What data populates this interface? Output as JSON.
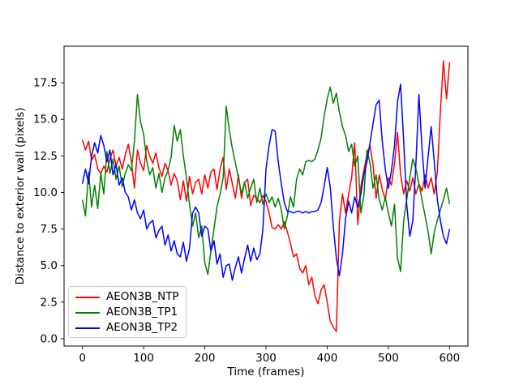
{
  "chart_data": {
    "type": "line",
    "title": "",
    "xlabel": "Time (frames)",
    "ylabel": "Distance to exterior wall (pixels)",
    "xlim": [
      -30,
      630
    ],
    "ylim": [
      -0.5,
      20.0
    ],
    "grid": false,
    "legend_position": "lower left",
    "x_ticks": [
      0,
      100,
      200,
      300,
      400,
      500,
      600
    ],
    "x_tick_labels": [
      "0",
      "100",
      "200",
      "300",
      "400",
      "500",
      "600"
    ],
    "y_ticks": [
      0.0,
      2.5,
      5.0,
      7.5,
      10.0,
      12.5,
      15.0,
      17.5
    ],
    "y_tick_labels": [
      "0.0",
      "2.5",
      "5.0",
      "7.5",
      "10.0",
      "12.5",
      "15.0",
      "17.5"
    ],
    "axis_color": "#000000",
    "x": [
      0,
      5,
      10,
      15,
      20,
      25,
      30,
      35,
      40,
      45,
      50,
      55,
      60,
      65,
      70,
      75,
      80,
      85,
      90,
      95,
      100,
      105,
      110,
      115,
      120,
      125,
      130,
      135,
      140,
      145,
      150,
      155,
      160,
      165,
      170,
      175,
      180,
      185,
      190,
      195,
      200,
      205,
      210,
      215,
      220,
      225,
      230,
      235,
      240,
      245,
      250,
      255,
      260,
      265,
      270,
      275,
      280,
      285,
      290,
      295,
      300,
      305,
      310,
      315,
      320,
      325,
      330,
      335,
      340,
      345,
      350,
      355,
      360,
      365,
      370,
      375,
      380,
      385,
      390,
      395,
      400,
      405,
      410,
      415,
      420,
      425,
      430,
      435,
      440,
      445,
      450,
      455,
      460,
      465,
      470,
      475,
      480,
      485,
      490,
      495,
      500,
      505,
      510,
      515,
      520,
      525,
      530,
      535,
      540,
      545,
      550,
      555,
      560,
      565,
      570,
      575,
      580,
      585,
      590,
      595,
      600
    ],
    "series": [
      {
        "name": "AEON3B_NTP",
        "color": "#ff0000",
        "values": [
          13.6,
          12.9,
          13.5,
          12.2,
          12.6,
          11.6,
          11.3,
          11.8,
          11.4,
          12.3,
          12.9,
          11.8,
          12.4,
          11.6,
          12.6,
          13.3,
          12.1,
          10.3,
          12.9,
          12.0,
          11.5,
          13.2,
          12.5,
          12.0,
          12.7,
          11.7,
          11.1,
          12.0,
          11.5,
          10.5,
          11.3,
          10.8,
          9.5,
          10.8,
          9.4,
          11.1,
          9.9,
          10.7,
          10.9,
          9.9,
          11.2,
          10.3,
          11.4,
          11.6,
          10.2,
          11.6,
          12.4,
          10.2,
          11.6,
          10.6,
          9.6,
          11.2,
          9.6,
          10.7,
          10.9,
          9.1,
          9.8,
          9.6,
          9.3,
          9.8,
          9.4,
          8.6,
          7.6,
          7.5,
          7.8,
          7.5,
          8.0,
          7.3,
          6.5,
          5.6,
          5.8,
          4.8,
          4.5,
          5.0,
          3.7,
          4.2,
          2.9,
          2.4,
          3.3,
          3.7,
          2.5,
          1.2,
          0.8,
          0.5,
          8.0,
          9.9,
          8.6,
          9.9,
          11.0,
          13.4,
          7.8,
          10.4,
          11.5,
          12.6,
          13.2,
          11.9,
          9.6,
          11.2,
          10.2,
          9.5,
          11.0,
          10.5,
          12.0,
          14.1,
          11.2,
          9.9,
          10.8,
          10.1,
          11.0,
          9.9,
          10.6,
          10.1,
          11.2,
          10.3,
          11.0,
          9.9,
          11.4,
          15.5,
          19.0,
          16.4,
          18.9
        ]
      },
      {
        "name": "AEON3B_TP1",
        "color": "#008000",
        "values": [
          9.5,
          8.4,
          11.4,
          9.0,
          10.5,
          8.9,
          11.3,
          9.9,
          12.8,
          11.3,
          12.3,
          10.9,
          11.8,
          10.4,
          11.3,
          11.9,
          11.5,
          13.5,
          16.7,
          14.8,
          14.0,
          12.2,
          11.2,
          11.7,
          10.3,
          11.3,
          10.0,
          11.0,
          11.5,
          12.4,
          14.6,
          13.5,
          14.3,
          12.5,
          11.0,
          9.2,
          7.7,
          8.6,
          6.9,
          7.7,
          5.2,
          4.4,
          6.0,
          7.5,
          9.0,
          9.9,
          11.0,
          15.9,
          14.3,
          13.0,
          12.0,
          11.0,
          9.9,
          10.7,
          9.6,
          10.3,
          10.9,
          9.3,
          10.3,
          9.2,
          9.9,
          9.3,
          9.7,
          9.0,
          9.6,
          8.8,
          7.5,
          8.4,
          9.7,
          9.0,
          10.9,
          11.6,
          11.2,
          12.1,
          12.2,
          12.1,
          12.3,
          12.9,
          13.7,
          15.2,
          16.4,
          17.2,
          16.1,
          16.8,
          15.5,
          14.5,
          13.9,
          12.8,
          13.3,
          11.8,
          12.5,
          8.6,
          9.8,
          12.9,
          12.0,
          10.3,
          11.2,
          9.5,
          8.8,
          9.7,
          8.6,
          7.7,
          9.2,
          5.5,
          4.6,
          8.1,
          9.5,
          11.0,
          12.3,
          11.6,
          10.6,
          9.5,
          8.4,
          7.3,
          5.8,
          7.3,
          8.1,
          8.8,
          9.5,
          10.3,
          9.2
        ]
      },
      {
        "name": "AEON3B_TP2",
        "color": "#0000ff",
        "values": [
          10.6,
          11.6,
          10.6,
          12.5,
          13.4,
          12.7,
          13.9,
          13.2,
          12.1,
          12.9,
          11.2,
          11.9,
          10.5,
          11.0,
          10.0,
          9.7,
          8.8,
          9.5,
          8.6,
          8.2,
          8.8,
          7.5,
          7.9,
          8.1,
          6.9,
          7.4,
          7.7,
          6.4,
          7.1,
          6.0,
          6.7,
          5.8,
          5.6,
          6.6,
          5.3,
          6.2,
          8.6,
          9.0,
          8.6,
          7.0,
          7.7,
          7.5,
          6.0,
          6.7,
          5.1,
          5.8,
          4.2,
          5.0,
          5.1,
          4.0,
          4.9,
          5.6,
          4.5,
          5.5,
          6.4,
          5.3,
          6.2,
          5.4,
          5.8,
          7.5,
          11.6,
          13.2,
          14.3,
          14.2,
          12.1,
          10.6,
          9.3,
          8.7,
          8.7,
          8.6,
          8.7,
          8.7,
          8.6,
          8.7,
          8.6,
          8.7,
          8.7,
          8.8,
          9.3,
          10.4,
          11.7,
          10.4,
          7.7,
          5.5,
          4.3,
          5.8,
          8.2,
          9.4,
          8.6,
          9.7,
          9.0,
          9.9,
          11.2,
          12.1,
          13.4,
          14.7,
          16.0,
          16.3,
          13.5,
          11.6,
          10.3,
          11.5,
          13.2,
          16.2,
          17.4,
          13.5,
          9.2,
          7.0,
          8.1,
          12.0,
          16.7,
          13.0,
          10.3,
          12.5,
          14.5,
          12.1,
          9.5,
          8.1,
          7.0,
          6.5,
          7.5
        ]
      }
    ]
  }
}
